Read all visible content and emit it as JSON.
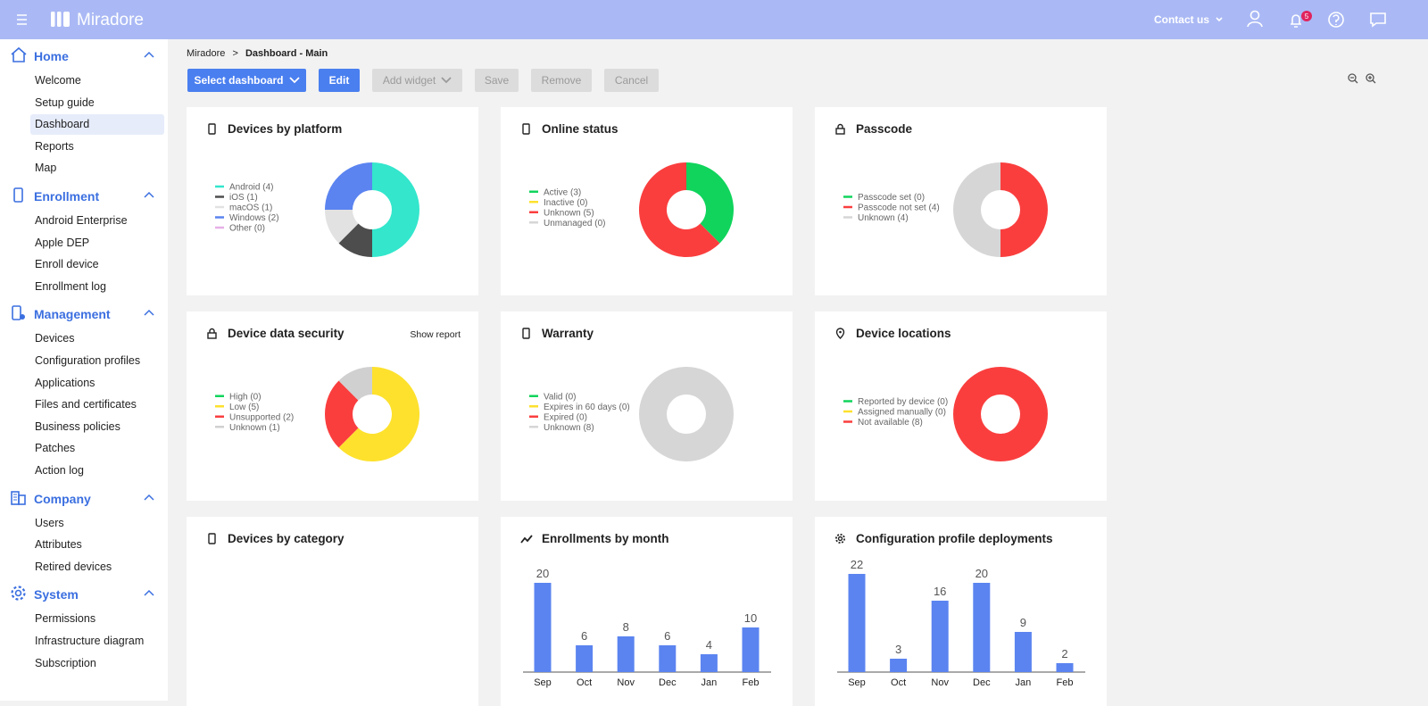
{
  "header": {
    "brand": "Miradore",
    "contact": "Contact us",
    "notifications": "5"
  },
  "breadcrumb": {
    "items": [
      "Miradore",
      "Dashboard - Main"
    ],
    "separator": ">"
  },
  "toolbar": {
    "buttons": [
      {
        "label": "Select dashboard",
        "enabled": true
      },
      {
        "label": "Edit",
        "enabled": true
      },
      {
        "label": "Add widget",
        "enabled": false
      },
      {
        "label": "Save",
        "enabled": false
      },
      {
        "label": "Remove",
        "enabled": false
      },
      {
        "label": "Cancel",
        "enabled": false
      }
    ]
  },
  "sidebar": {
    "sections": [
      {
        "title": "Home",
        "icon": "home",
        "items": [
          "Welcome",
          "Setup guide",
          "Dashboard",
          "Reports",
          "Map"
        ],
        "active_index": 2
      },
      {
        "title": "Enrollment",
        "icon": "phone",
        "items": [
          "Android Enterprise",
          "Apple DEP",
          "Enroll device",
          "Enrollment log"
        ]
      },
      {
        "title": "Management",
        "icon": "manage",
        "items": [
          "Devices",
          "Configuration profiles",
          "Applications",
          "Files and certificates",
          "Business policies",
          "Patches",
          "Action log"
        ]
      },
      {
        "title": "Company",
        "icon": "company",
        "items": [
          "Users",
          "Attributes",
          "Retired devices"
        ]
      },
      {
        "title": "System",
        "icon": "gear",
        "items": [
          "Permissions",
          "Infrastructure diagram",
          "Subscription"
        ]
      }
    ]
  },
  "widgets": [
    {
      "title": "Devices by platform",
      "icon": "phone",
      "chart_data": {
        "type": "donut",
        "labels": [
          "Android (4)",
          "iOS (1)",
          "macOS (1)",
          "Windows (2)",
          "Other (0)"
        ],
        "values": [
          4,
          1,
          1,
          2,
          0
        ],
        "colors": [
          "#33e6cc",
          "#4d4d4d",
          "#e2e2e2",
          "#5b84f0",
          "#e6b0e6"
        ]
      }
    },
    {
      "title": "Online status",
      "icon": "phone",
      "chart_data": {
        "type": "donut",
        "labels": [
          "Active (3)",
          "Inactive (0)",
          "Unknown (5)",
          "Unmanaged (0)"
        ],
        "values": [
          3,
          0,
          5,
          0
        ],
        "colors": [
          "#10d45c",
          "#fde12d",
          "#fa3e3e",
          "#d6d6d6"
        ]
      }
    },
    {
      "title": "Passcode",
      "icon": "lock",
      "chart_data": {
        "type": "donut",
        "labels": [
          "Passcode set (0)",
          "Passcode not set (4)",
          "Unknown (4)"
        ],
        "values": [
          0,
          4,
          4
        ],
        "colors": [
          "#10d45c",
          "#fa3e3e",
          "#d6d6d6"
        ]
      }
    },
    {
      "title": "Device data security",
      "icon": "lock",
      "link": "Show report",
      "chart_data": {
        "type": "donut",
        "labels": [
          "High (0)",
          "Low (5)",
          "Unsupported (2)",
          "Unknown (1)"
        ],
        "values": [
          0,
          5,
          2,
          1
        ],
        "colors": [
          "#10d45c",
          "#fde12d",
          "#fa3e3e",
          "#d0d0d0"
        ]
      }
    },
    {
      "title": "Warranty",
      "icon": "phone",
      "chart_data": {
        "type": "donut",
        "labels": [
          "Valid (0)",
          "Expires in 60 days (0)",
          "Expired (0)",
          "Unknown (8)"
        ],
        "values": [
          0,
          0,
          0,
          8
        ],
        "colors": [
          "#10d45c",
          "#fde12d",
          "#fa3e3e",
          "#d6d6d6"
        ]
      }
    },
    {
      "title": "Device locations",
      "icon": "pin",
      "chart_data": {
        "type": "donut",
        "labels": [
          "Reported by device (0)",
          "Assigned manually (0)",
          "Not available (8)"
        ],
        "values": [
          0,
          0,
          8
        ],
        "colors": [
          "#10d45c",
          "#fde12d",
          "#fa3e3e"
        ]
      }
    },
    {
      "title": "Devices by category",
      "icon": "phone"
    },
    {
      "title": "Enrollments by month",
      "icon": "trend",
      "chart_data": {
        "type": "bar",
        "categories": [
          "Sep",
          "Oct",
          "Nov",
          "Dec",
          "Jan",
          "Feb"
        ],
        "values": [
          20,
          6,
          8,
          6,
          4,
          10
        ],
        "color": "#5b84f0"
      }
    },
    {
      "title": "Configuration profile deployments",
      "icon": "gear",
      "chart_data": {
        "type": "bar",
        "categories": [
          "Sep",
          "Oct",
          "Nov",
          "Dec",
          "Jan",
          "Feb"
        ],
        "values": [
          22,
          3,
          16,
          20,
          9,
          2
        ],
        "color": "#5b84f0"
      }
    }
  ]
}
